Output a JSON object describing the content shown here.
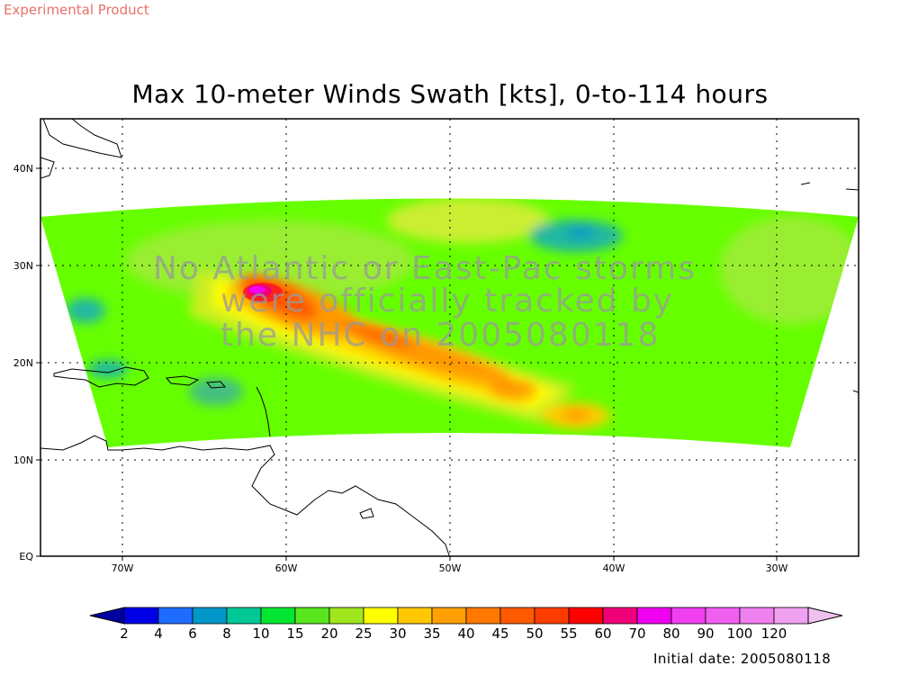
{
  "header": {
    "experimental": "Experimental Product"
  },
  "title": "Max 10-meter Winds Swath [kts], 0-to-114 hours",
  "overlay_lines": [
    "No Atlantic or East-Pac storms",
    "were officially tracked by",
    "the NHC on 2005080118"
  ],
  "axes": {
    "y_ticks": [
      "40N",
      "30N",
      "20N",
      "10N",
      "EQ"
    ],
    "x_ticks": [
      "70W",
      "60W",
      "50W",
      "40W",
      "30W"
    ]
  },
  "legend": {
    "labels": [
      "2",
      "4",
      "6",
      "8",
      "10",
      "15",
      "20",
      "25",
      "30",
      "35",
      "40",
      "45",
      "50",
      "55",
      "60",
      "70",
      "80",
      "90",
      "100",
      "120"
    ],
    "colors": [
      "#0000a0",
      "#0000e6",
      "#1e6cff",
      "#0096c8",
      "#00c896",
      "#00e632",
      "#5ae61e",
      "#a0e61e",
      "#ffff00",
      "#ffc800",
      "#ffa000",
      "#ff7800",
      "#ff5a00",
      "#ff3c00",
      "#ff0000",
      "#f00078",
      "#f000f0",
      "#f040f0",
      "#f060f0",
      "#f080f0",
      "#f0a0f0",
      "#f0c0f0"
    ]
  },
  "footer": {
    "initial_date": "Initial date: 2005080118"
  }
}
